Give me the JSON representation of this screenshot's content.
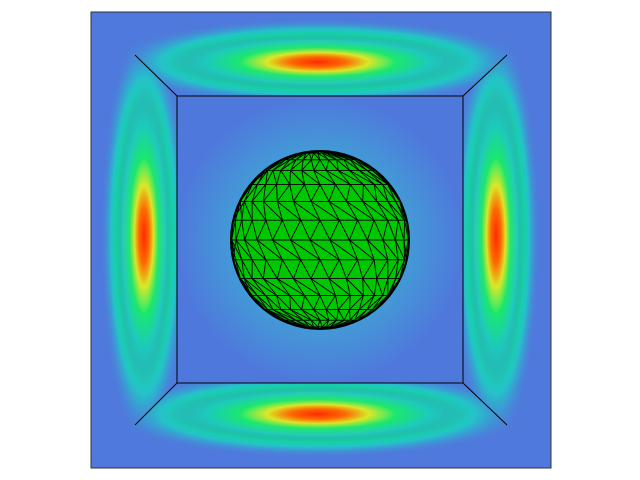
{
  "scene": {
    "background_color": "#ffffff",
    "box_colormap": [
      "#4f79dc",
      "#22bfcf",
      "#00e676",
      "#d8f52a",
      "#ff3a00"
    ],
    "wall_base_color": "#4f79dc",
    "edge_color": "#000000",
    "sphere_color": "#00c800",
    "sphere_wire_color": "#000000",
    "walls": [
      "top",
      "bottom",
      "left",
      "right",
      "back"
    ],
    "hotspot": "red-center-on-each-side-wall"
  }
}
